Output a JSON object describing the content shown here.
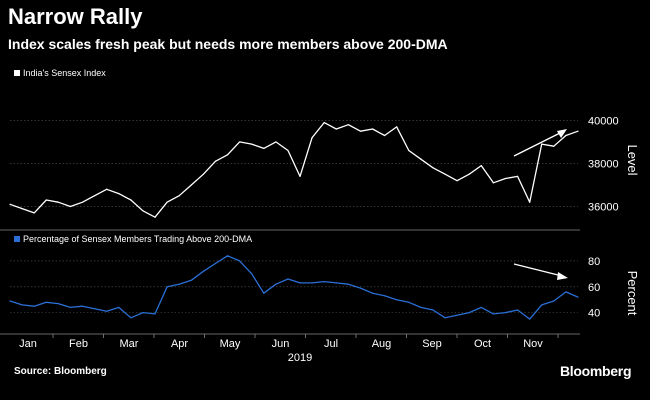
{
  "title": "Narrow Rally",
  "subtitle": "Index scales fresh peak but needs more members above 200-DMA",
  "source": "Source: Bloomberg",
  "brand": "Bloomberg",
  "colors": {
    "background": "#000000",
    "top_line": "#ffffff",
    "bottom_line": "#2b6fd6",
    "grid": "#555555"
  },
  "chart_data": [
    {
      "type": "line",
      "series": [
        {
          "name": "India's Sensex Index"
        }
      ],
      "ylabel": "Level",
      "ylim": [
        35000,
        41600
      ],
      "yticks": [
        36000,
        38000,
        40000
      ],
      "x": [
        0,
        1,
        2,
        3,
        4,
        5,
        6,
        7,
        8,
        9,
        10,
        11,
        12,
        13,
        14,
        15,
        16,
        17,
        18,
        19,
        20,
        21,
        22,
        23,
        24,
        25,
        26,
        27,
        28,
        29,
        30,
        31,
        32,
        33,
        34,
        35,
        36,
        37,
        38,
        39,
        40,
        41,
        42,
        43,
        44,
        45,
        46,
        47
      ],
      "values": [
        36100,
        35900,
        35700,
        36300,
        36200,
        36000,
        36200,
        36500,
        36800,
        36600,
        36300,
        35800,
        35500,
        36200,
        36500,
        37000,
        37500,
        38100,
        38400,
        39000,
        38900,
        38700,
        39000,
        38600,
        37400,
        39200,
        39900,
        39600,
        39800,
        39500,
        39600,
        39300,
        39700,
        38600,
        38200,
        37800,
        37500,
        37200,
        37500,
        37900,
        37100,
        37300,
        37400,
        36200,
        38900,
        38800,
        39300,
        39500
      ]
    },
    {
      "type": "line",
      "series": [
        {
          "name": "Percentage of Sensex Members Trading Above 200-DMA"
        }
      ],
      "ylabel": "Percent",
      "ylim": [
        25,
        90
      ],
      "yticks": [
        40,
        60,
        80
      ],
      "x": [
        0,
        1,
        2,
        3,
        4,
        5,
        6,
        7,
        8,
        9,
        10,
        11,
        12,
        13,
        14,
        15,
        16,
        17,
        18,
        19,
        20,
        21,
        22,
        23,
        24,
        25,
        26,
        27,
        28,
        29,
        30,
        31,
        32,
        33,
        34,
        35,
        36,
        37,
        38,
        39,
        40,
        41,
        42,
        43,
        44,
        45,
        46,
        47
      ],
      "values": [
        49,
        46,
        45,
        48,
        47,
        44,
        45,
        43,
        41,
        44,
        36,
        40,
        39,
        60,
        62,
        65,
        72,
        78,
        84,
        80,
        70,
        55,
        62,
        66,
        63,
        63,
        64,
        63,
        62,
        59,
        55,
        53,
        50,
        48,
        44,
        42,
        36,
        38,
        40,
        44,
        39,
        40,
        42,
        35,
        46,
        49,
        56,
        52
      ]
    }
  ],
  "x_axis": {
    "month_labels": [
      "Jan",
      "Feb",
      "Mar",
      "Apr",
      "May",
      "Jun",
      "Jul",
      "Aug",
      "Sep",
      "Oct",
      "Nov"
    ],
    "year_label": "2019"
  }
}
